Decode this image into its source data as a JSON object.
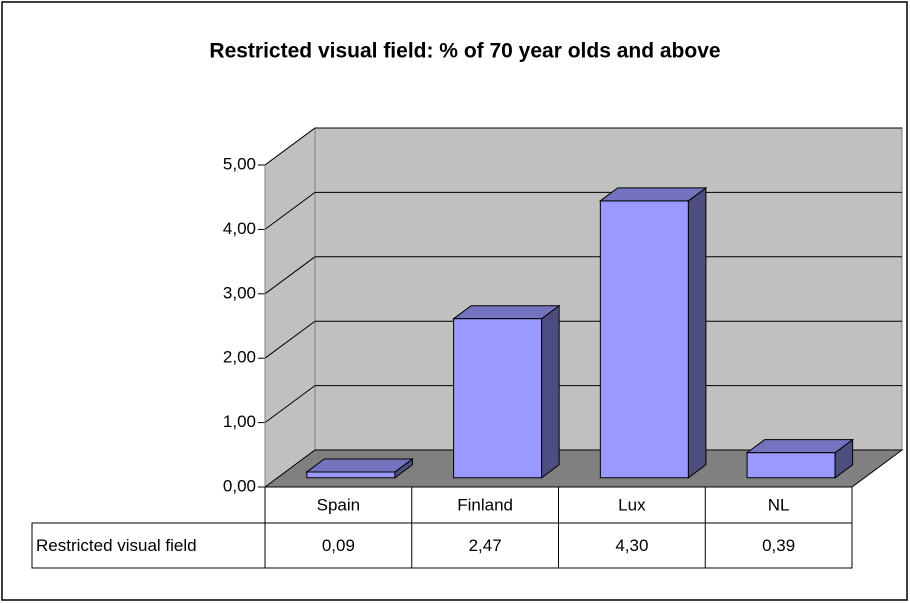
{
  "chart_data": {
    "type": "bar3d",
    "title": "Restricted visual field: % of 70 year olds and above",
    "categories": [
      "Spain",
      "Finland",
      "Lux",
      "NL"
    ],
    "series": [
      {
        "name": "Restricted visual field",
        "color": "#9999ff",
        "values": [
          0.09,
          2.47,
          4.3,
          0.39
        ],
        "value_labels": [
          "0,09",
          "2,47",
          "4,30",
          "0,39"
        ]
      }
    ],
    "ylim": [
      0,
      5
    ],
    "yticks": [
      {
        "value": 0,
        "label": "0,00"
      },
      {
        "value": 1,
        "label": "1,00"
      },
      {
        "value": 2,
        "label": "2,00"
      },
      {
        "value": 3,
        "label": "3,00"
      },
      {
        "value": 4,
        "label": "4,00"
      },
      {
        "value": 5,
        "label": "5,00"
      }
    ],
    "grid": true,
    "data_table": true
  }
}
